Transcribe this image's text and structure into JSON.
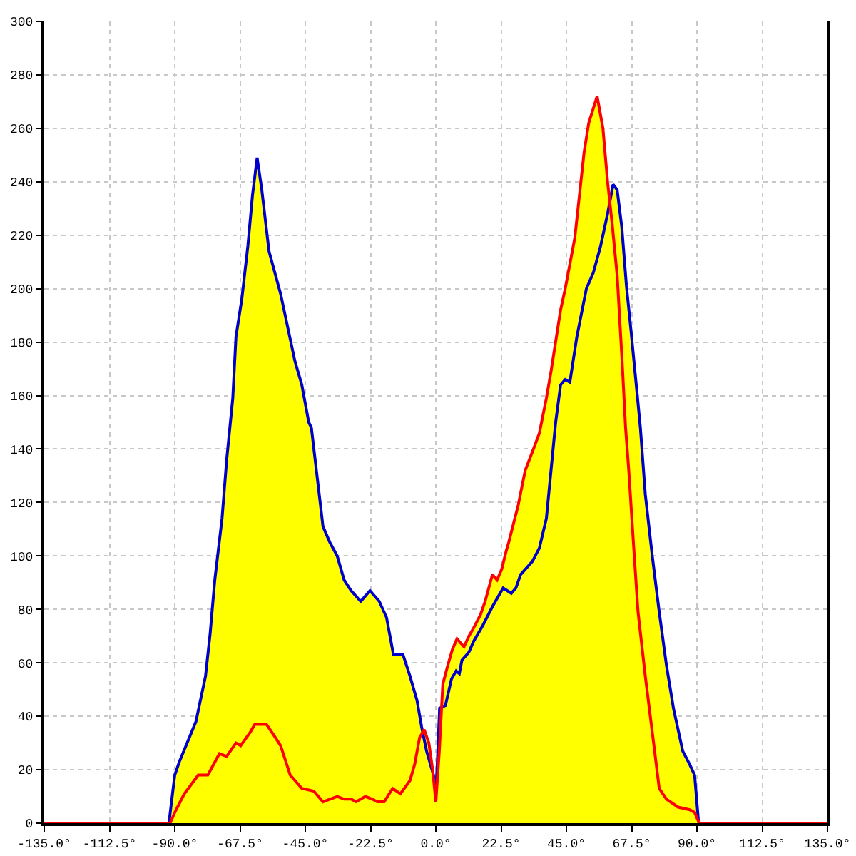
{
  "chart_data": {
    "type": "line",
    "series": [
      {
        "type": "area",
        "color": "#ffff00",
        "x": [
          -92,
          -90,
          -88.4,
          -82.7,
          -79.4,
          -77.8,
          -76.2,
          -73.7,
          -72.1,
          -70,
          -68.9,
          -66.9,
          -64.8,
          -63.2,
          -61.6,
          -60,
          -57.5,
          -53.5,
          -48.6,
          -46.2,
          -43.8,
          -42.9,
          -38.9,
          -36.5,
          -34,
          -31.6,
          -29.2,
          -25.9,
          -22.7,
          -19.5,
          -17,
          -14.6,
          -11.3,
          -8.9,
          -6.5,
          -4.9,
          -4.5,
          -4,
          -2.4,
          -1.1,
          -1,
          -0.8,
          0,
          0.5,
          1.3,
          2,
          2.4,
          4.1,
          5.7,
          7.3,
          9.7,
          11.4,
          13,
          15.4,
          17,
          19.5,
          21.1,
          22.7,
          24.3,
          25.1,
          28.4,
          30.8,
          34,
          35.7,
          38.1,
          39.7,
          43,
          44.6,
          47.9,
          51.1,
          52.7,
          55.6,
          57.6,
          59.2,
          60,
          61.1,
          62.5,
          64.1,
          65.7,
          67.3,
          68.9,
          70.5,
          72.2,
          74.6,
          77,
          79.5,
          81.9,
          85.1,
          87.5,
          89.2,
          90.5,
          90.7
        ],
        "values": [
          0,
          18,
          23,
          38,
          55,
          71,
          91,
          114,
          136,
          159,
          182,
          196,
          216,
          235,
          249,
          237,
          214,
          198,
          173,
          164,
          150,
          148,
          111,
          105,
          100,
          91,
          87,
          83,
          87,
          83,
          77,
          63,
          63,
          55,
          46,
          36,
          34,
          35,
          30,
          20,
          19,
          18,
          12,
          22,
          43,
          43,
          52,
          59,
          65,
          69,
          66,
          70,
          73,
          78,
          83,
          93,
          91,
          95,
          102,
          105,
          119,
          132,
          141,
          146,
          159,
          169,
          192,
          200,
          219,
          251,
          262,
          272,
          260,
          240,
          232,
          239,
          237,
          223,
          201,
          184,
          166,
          148,
          123,
          100,
          79,
          59,
          43,
          27,
          22,
          18,
          1,
          0
        ]
      },
      {
        "color": "#0000cc",
        "x": [
          -92,
          -90,
          -88.4,
          -82.7,
          -79.4,
          -77.8,
          -76.2,
          -73.7,
          -72.1,
          -70,
          -68.9,
          -66.9,
          -64.8,
          -63.2,
          -61.6,
          -60,
          -57.5,
          -53.5,
          -48.6,
          -46.2,
          -43.8,
          -42.9,
          -38.9,
          -36.5,
          -34,
          -31.6,
          -29.2,
          -25.9,
          -22.7,
          -19.5,
          -17,
          -14.6,
          -11.3,
          -8.9,
          -6.5,
          -4.9,
          -3.2,
          -0.8,
          0,
          0.5,
          1.3,
          3.3,
          5.4,
          7,
          8.1,
          9,
          11.4,
          13,
          16.2,
          19.5,
          23.2,
          26,
          27.6,
          29.2,
          33.3,
          35.7,
          38.1,
          39.7,
          41.3,
          43,
          44.6,
          46.2,
          48.6,
          51.9,
          54.3,
          56.8,
          59.2,
          61.1,
          62.5,
          64.1,
          65.7,
          67.3,
          68.9,
          70.5,
          72.2,
          74.6,
          77,
          79.5,
          81.9,
          85.1,
          87.5,
          89.2,
          90.5,
          90.7
        ],
        "values": [
          0,
          18,
          23,
          38,
          55,
          71,
          91,
          114,
          136,
          159,
          182,
          196,
          216,
          235,
          249,
          237,
          214,
          198,
          173,
          164,
          150,
          148,
          111,
          105,
          100,
          91,
          87,
          83,
          87,
          83,
          77,
          63,
          63,
          55,
          46,
          36,
          27,
          18,
          12,
          22,
          43,
          44,
          54,
          57,
          56,
          61,
          64,
          68,
          74,
          81,
          88,
          86,
          88,
          93,
          98,
          103,
          114,
          132,
          150,
          164,
          166,
          165,
          182,
          200,
          206,
          216,
          228,
          239,
          237,
          223,
          201,
          184,
          166,
          148,
          123,
          100,
          79,
          59,
          43,
          27,
          22,
          18,
          1,
          0
        ]
      },
      {
        "color": "#ff0000",
        "x": [
          -135,
          -91.6,
          -90,
          -86.7,
          -81.9,
          -78.6,
          -74.6,
          -72.1,
          -68.9,
          -67.3,
          -64,
          -62.4,
          -58.4,
          -55.9,
          -53.5,
          -50.2,
          -46.2,
          -42.1,
          -38.9,
          -36.5,
          -34,
          -31.6,
          -29.2,
          -27.5,
          -24.3,
          -21.9,
          -20.2,
          -17.8,
          -14.9,
          -12.2,
          -8.9,
          -7.3,
          -5.6,
          -4,
          -2.4,
          -1.1,
          0,
          1.2,
          2.4,
          4.1,
          5.7,
          7.3,
          9.7,
          11.4,
          13,
          15.4,
          17,
          19.5,
          21.1,
          22.7,
          24.3,
          25.1,
          28.4,
          30.8,
          34,
          35.7,
          38.1,
          39.7,
          43,
          44.6,
          47.9,
          51.1,
          52.7,
          55.6,
          57.6,
          59.2,
          60.8,
          62.5,
          64.1,
          65.4,
          66.5,
          68.1,
          69.7,
          72.2,
          74.6,
          77,
          79.5,
          83.5,
          87.5,
          89.2,
          90.8,
          135
        ],
        "values": [
          0,
          0,
          4,
          11,
          18,
          18,
          26,
          25,
          30,
          29,
          34,
          37,
          37,
          33,
          29,
          18,
          13,
          12,
          8,
          9,
          10,
          9,
          9,
          8,
          10,
          9,
          8,
          8,
          13,
          11,
          16,
          22,
          32,
          35,
          30,
          20,
          8,
          27,
          52,
          59,
          65,
          69,
          66,
          70,
          73,
          78,
          83,
          93,
          91,
          95,
          102,
          105,
          119,
          132,
          141,
          146,
          159,
          169,
          192,
          200,
          219,
          251,
          262,
          272,
          260,
          240,
          224,
          205,
          175,
          148,
          132,
          105,
          79,
          55,
          34,
          13,
          9,
          6,
          5,
          4,
          0,
          0
        ]
      }
    ],
    "xlim": [
      -135,
      135
    ],
    "xticks": [
      {
        "value": -135,
        "label": "-135.0°"
      },
      {
        "value": -112.5,
        "label": "-112.5°"
      },
      {
        "value": -90,
        "label": "-90.0°"
      },
      {
        "value": -67.5,
        "label": "-67.5°"
      },
      {
        "value": -45,
        "label": "-45.0°"
      },
      {
        "value": -22.5,
        "label": "-22.5°"
      },
      {
        "value": 0,
        "label": "0.0°"
      },
      {
        "value": 22.5,
        "label": "22.5°"
      },
      {
        "value": 45,
        "label": "45.0°"
      },
      {
        "value": 67.5,
        "label": "67.5°"
      },
      {
        "value": 90,
        "label": "90.0°"
      },
      {
        "value": 112.5,
        "label": "112.5°"
      },
      {
        "value": 135,
        "label": "135.0°"
      }
    ],
    "ylim": [
      0,
      300
    ],
    "yticks": [
      0,
      20,
      40,
      60,
      80,
      100,
      120,
      140,
      160,
      180,
      200,
      220,
      240,
      260,
      280,
      300
    ],
    "grid": true
  }
}
